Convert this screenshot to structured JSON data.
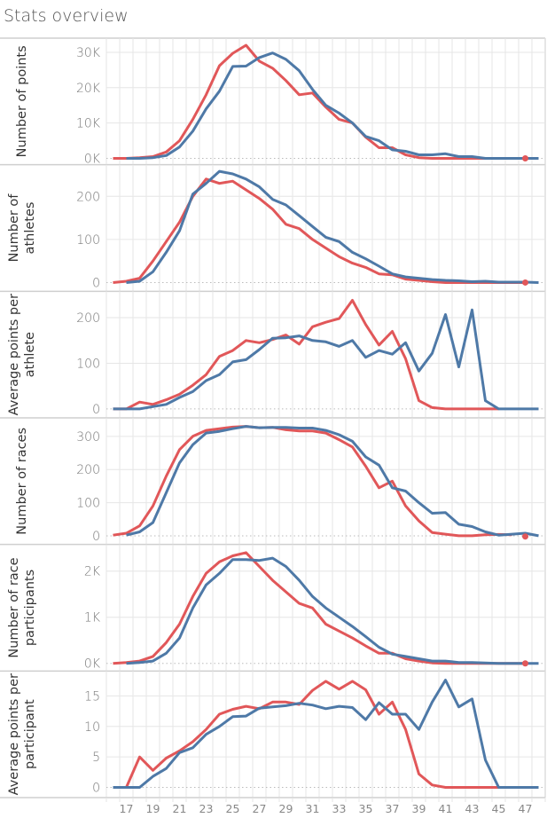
{
  "title": "Stats overview",
  "colors": {
    "series_a": "#e15759",
    "series_b": "#4e79a7",
    "grid": "#e6e6e6",
    "border": "#cfcfcf",
    "zero_line": "#bbbbbb"
  },
  "chart_data": {
    "type": "line",
    "x_ticks": [
      17,
      19,
      21,
      23,
      25,
      27,
      29,
      31,
      33,
      35,
      37,
      39,
      41,
      43,
      45,
      47
    ],
    "x_range": [
      15.5,
      48.5
    ],
    "panels": [
      {
        "ylabel": [
          "Number of points"
        ],
        "yticks": [
          0,
          10,
          20,
          30
        ],
        "ytick_labels": [
          "0K",
          "10K",
          "20K",
          "30K"
        ],
        "ylim": [
          -0.3,
          33
        ],
        "unit": "thousands",
        "series": [
          {
            "name": "red",
            "x_start": 16,
            "values": [
              0,
              0,
              0.2,
              0.5,
              1.8,
              5,
              11,
              18,
              26.2,
              29.7,
              32,
              27.5,
              25.5,
              22,
              18,
              18.5,
              14.5,
              11,
              10,
              6,
              3,
              3,
              1,
              0.2,
              0,
              0,
              0,
              0,
              0,
              0,
              0,
              0
            ],
            "marker_x": 47,
            "marker_y": 0
          },
          {
            "name": "blue",
            "x_start": 17,
            "values": [
              0,
              0,
              0.2,
              0.8,
              3.2,
              7.7,
              14,
              19,
              26,
              26.1,
              28.5,
              29.8,
              28,
              24.8,
              19.5,
              15,
              12.8,
              10,
              6.2,
              5,
              2.4,
              2,
              1,
              1,
              1.3,
              0.5,
              0.5,
              0,
              0,
              0,
              0,
              0
            ]
          }
        ]
      },
      {
        "ylabel": [
          "Number of",
          "athletes"
        ],
        "yticks": [
          0,
          100,
          200
        ],
        "ytick_labels": [
          "0",
          "100",
          "200"
        ],
        "ylim": [
          -8,
          265
        ],
        "series": [
          {
            "name": "red",
            "x_start": 16,
            "values": [
              0,
              3,
              10,
              50,
              95,
              140,
              200,
              240,
              230,
              235,
              215,
              195,
              170,
              135,
              125,
              100,
              80,
              60,
              45,
              35,
              20,
              18,
              8,
              5,
              2,
              0,
              0,
              0,
              0,
              0,
              0,
              0
            ],
            "marker_x": 47,
            "marker_y": 0
          },
          {
            "name": "blue",
            "x_start": 17,
            "values": [
              0,
              3,
              25,
              70,
              120,
              205,
              230,
              258,
              252,
              240,
              222,
              193,
              180,
              155,
              130,
              105,
              95,
              70,
              55,
              38,
              20,
              13,
              10,
              7,
              5,
              4,
              2,
              3,
              1,
              1,
              1,
              0
            ]
          }
        ]
      },
      {
        "ylabel": [
          "Average points per",
          "athlete"
        ],
        "yticks": [
          0,
          100,
          200
        ],
        "ytick_labels": [
          "0",
          "100",
          "200"
        ],
        "ylim": [
          -8,
          250
        ],
        "series": [
          {
            "name": "red",
            "x_start": 16,
            "values": [
              0,
              0,
              15,
              10,
              20,
              32,
              52,
              75,
              115,
              128,
              150,
              145,
              152,
              162,
              142,
              180,
              190,
              198,
              238,
              185,
              140,
              170,
              110,
              18,
              3,
              0,
              0,
              0,
              0,
              0
            ]
          },
          {
            "name": "blue",
            "x_start": 16,
            "values": [
              0,
              0,
              0,
              5,
              10,
              25,
              38,
              62,
              75,
              103,
              108,
              130,
              155,
              156,
              160,
              150,
              147,
              137,
              150,
              113,
              128,
              120,
              145,
              83,
              122,
              207,
              92,
              217,
              18,
              0,
              0,
              0,
              0
            ]
          }
        ]
      },
      {
        "ylabel": [
          "Number of races"
        ],
        "yticks": [
          0,
          100,
          200,
          300
        ],
        "ytick_labels": [
          "0",
          "100",
          "200",
          "300"
        ],
        "ylim": [
          -10,
          345
        ],
        "series": [
          {
            "name": "red",
            "x_start": 16,
            "values": [
              2,
              8,
              30,
              90,
              180,
              260,
              300,
              318,
              323,
              328,
              330,
              326,
              327,
              320,
              316,
              316,
              310,
              290,
              268,
              210,
              145,
              165,
              90,
              45,
              10,
              5,
              0,
              0,
              3,
              4,
              3
            ],
            "marker_x": 47,
            "marker_y": -2
          },
          {
            "name": "blue",
            "x_start": 17,
            "values": [
              2,
              12,
              40,
              130,
              220,
              275,
              310,
              315,
              323,
              330,
              326,
              327,
              327,
              325,
              325,
              318,
              305,
              285,
              238,
              213,
              145,
              135,
              100,
              68,
              70,
              35,
              28,
              12,
              2,
              5,
              8,
              0
            ]
          }
        ]
      },
      {
        "ylabel": [
          "Number of race",
          "participants"
        ],
        "yticks": [
          0,
          1,
          2
        ],
        "ytick_labels": [
          "0K",
          "1K",
          "2K"
        ],
        "ylim": [
          -0.05,
          2.5
        ],
        "unit": "thousands",
        "series": [
          {
            "name": "red",
            "x_start": 16,
            "values": [
              0,
              0.02,
              0.05,
              0.15,
              0.45,
              0.85,
              1.45,
              1.95,
              2.2,
              2.33,
              2.4,
              2.1,
              1.8,
              1.55,
              1.3,
              1.2,
              0.85,
              0.7,
              0.55,
              0.38,
              0.22,
              0.22,
              0.1,
              0.05,
              0.01,
              0,
              0,
              0,
              0,
              0,
              0,
              0
            ],
            "marker_x": 47,
            "marker_y": 0
          },
          {
            "name": "blue",
            "x_start": 17,
            "values": [
              0,
              0.02,
              0.05,
              0.22,
              0.55,
              1.2,
              1.7,
              1.95,
              2.25,
              2.25,
              2.23,
              2.28,
              2.1,
              1.8,
              1.45,
              1.2,
              1.0,
              0.8,
              0.58,
              0.35,
              0.2,
              0.15,
              0.1,
              0.05,
              0.05,
              0.02,
              0.02,
              0.01,
              0,
              0,
              0,
              0
            ]
          }
        ]
      },
      {
        "ylabel": [
          "Average points per",
          "participant"
        ],
        "yticks": [
          0,
          5,
          10,
          15
        ],
        "ytick_labels": [
          "0",
          "5",
          "10",
          "15"
        ],
        "ylim": [
          -0.8,
          18.5
        ],
        "series": [
          {
            "name": "red",
            "x_start": 16,
            "values": [
              0,
              0,
              5,
              2.8,
              4.8,
              6,
              7.5,
              9.5,
              12,
              12.8,
              13.3,
              12.9,
              14,
              14,
              13.6,
              15.9,
              17.4,
              16.1,
              17.4,
              16,
              12,
              14,
              9.5,
              2.2,
              0.4,
              0,
              0,
              0,
              0,
              0
            ]
          },
          {
            "name": "blue",
            "x_start": 16,
            "values": [
              0,
              0,
              0,
              1.8,
              3.1,
              5.7,
              6.5,
              8.7,
              10,
              11.6,
              11.7,
              13,
              13.2,
              13.4,
              13.8,
              13.5,
              12.9,
              13.3,
              13.1,
              11.1,
              13.9,
              12,
              12,
              9.5,
              14,
              17.6,
              13.2,
              14.5,
              4.5,
              0,
              0,
              0,
              0
            ]
          }
        ]
      }
    ]
  }
}
